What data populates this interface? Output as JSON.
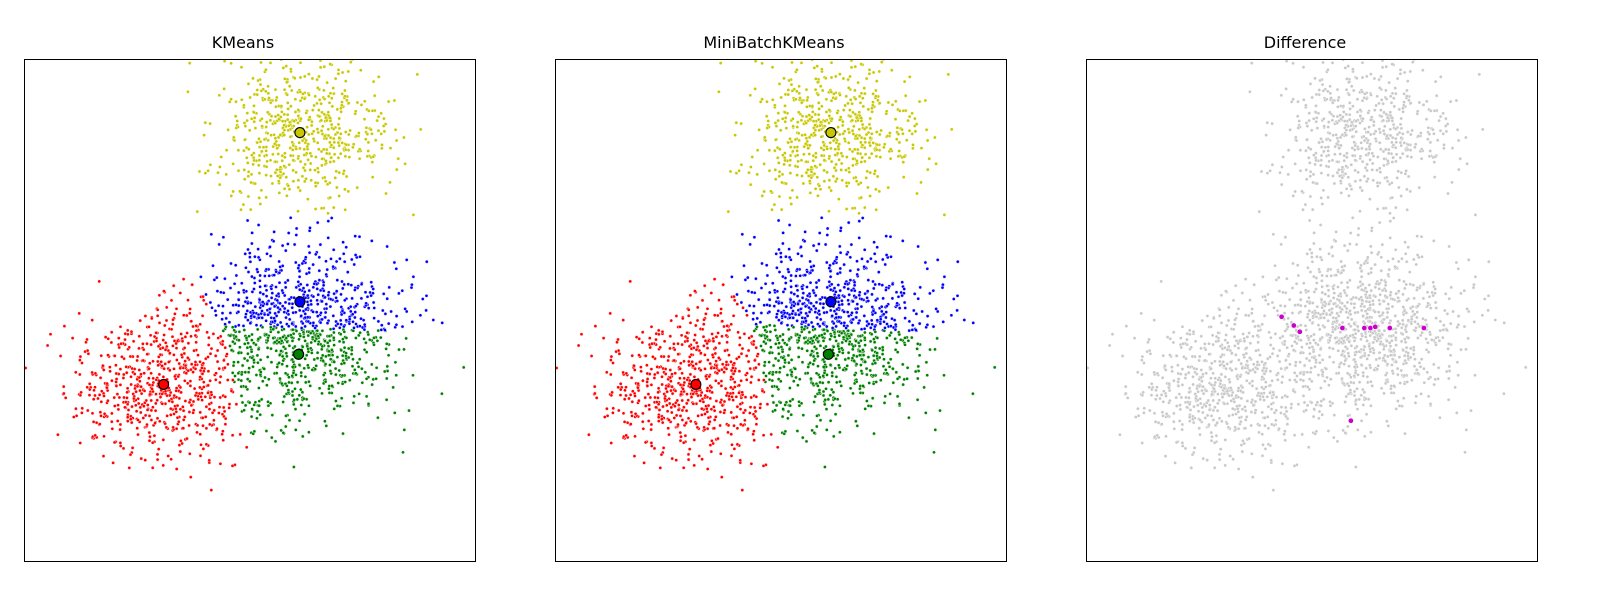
{
  "chart_data": [
    {
      "type": "scatter",
      "title": "KMeans",
      "xlabel": "",
      "ylabel": "",
      "xlim": [
        -1.8,
        1.9
      ],
      "ylim": [
        -1.9,
        2.1
      ],
      "ticks": "none",
      "grid": false,
      "legend": "none",
      "point_colors": [
        "#4EACC5",
        "#FF9C34",
        "#4E9A06"
      ],
      "clusters": [
        {
          "color": "#c8c800",
          "center": [
            0.45,
            1.5
          ],
          "n_points": 600
        },
        {
          "color": "#0000ff",
          "center": [
            0.46,
            0.1
          ],
          "n_points": 500
        },
        {
          "color": "#008000",
          "center": [
            0.45,
            -0.33
          ],
          "n_points": 550
        },
        {
          "color": "#ff0000",
          "center": [
            -0.66,
            -0.58
          ],
          "n_points": 650
        }
      ],
      "centroids": [
        {
          "color": "#c8c800",
          "x": 0.46,
          "y": 1.52
        },
        {
          "color": "#0000ff",
          "x": 0.46,
          "y": 0.17
        },
        {
          "color": "#008000",
          "x": 0.45,
          "y": -0.25
        },
        {
          "color": "#ff0000",
          "x": -0.66,
          "y": -0.49
        }
      ]
    },
    {
      "type": "scatter",
      "title": "MiniBatchKMeans",
      "xlabel": "",
      "ylabel": "",
      "xlim": [
        -1.8,
        1.9
      ],
      "ylim": [
        -1.9,
        2.1
      ],
      "ticks": "none",
      "grid": false,
      "legend": "none",
      "clusters": [
        {
          "color": "#c8c800",
          "center": [
            0.45,
            1.5
          ],
          "n_points": 600
        },
        {
          "color": "#0000ff",
          "center": [
            0.46,
            0.1
          ],
          "n_points": 500
        },
        {
          "color": "#008000",
          "center": [
            0.45,
            -0.33
          ],
          "n_points": 550
        },
        {
          "color": "#ff0000",
          "center": [
            -0.66,
            -0.58
          ],
          "n_points": 650
        }
      ],
      "centroids": [
        {
          "color": "#c8c800",
          "x": 0.46,
          "y": 1.52
        },
        {
          "color": "#0000ff",
          "x": 0.46,
          "y": 0.17
        },
        {
          "color": "#008000",
          "x": 0.44,
          "y": -0.25
        },
        {
          "color": "#ff0000",
          "x": -0.65,
          "y": -0.49
        }
      ]
    },
    {
      "type": "scatter",
      "title": "Difference",
      "xlabel": "",
      "ylabel": "",
      "xlim": [
        -1.8,
        1.9
      ],
      "ylim": [
        -1.9,
        2.1
      ],
      "ticks": "none",
      "grid": false,
      "legend": "none",
      "background_color": "#c8c8c8",
      "highlight_color": "#cc00cc",
      "differing_points": [
        {
          "x": -0.2,
          "y": 0.05
        },
        {
          "x": -0.1,
          "y": -0.02
        },
        {
          "x": -0.05,
          "y": -0.07
        },
        {
          "x": 0.3,
          "y": -0.04
        },
        {
          "x": 0.48,
          "y": -0.04
        },
        {
          "x": 0.53,
          "y": -0.04
        },
        {
          "x": 0.57,
          "y": -0.03
        },
        {
          "x": 0.69,
          "y": -0.04
        },
        {
          "x": 0.97,
          "y": -0.04
        },
        {
          "x": 0.37,
          "y": -0.78
        }
      ]
    }
  ]
}
